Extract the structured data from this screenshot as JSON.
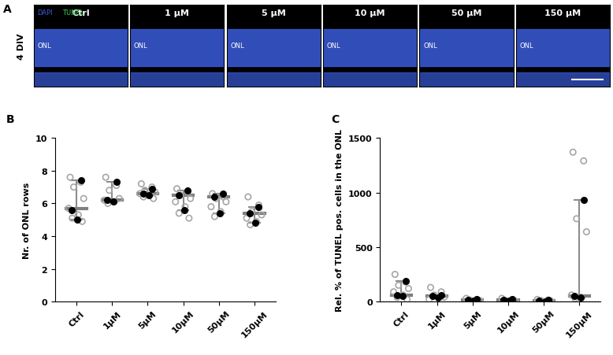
{
  "panel_a": {
    "label": "A",
    "row_label": "4 DIV",
    "region_label": "ONL",
    "stains": [
      {
        "name": "DAPI",
        "color": "#3a5bd9"
      },
      {
        "name": "TUNEL",
        "color": "#39d353"
      }
    ],
    "titles": [
      "Ctrl",
      "1 µM",
      "5 µM",
      "10 µM",
      "50 µM",
      "150 µM"
    ]
  },
  "chart_data": [
    {
      "type": "dot",
      "annotations": [
        "B"
      ],
      "y_label": "Nr. of ONL rows",
      "categories": [
        "Ctrl",
        "1µM",
        "5µM",
        "10µM",
        "50µM",
        "150µM"
      ],
      "points": [
        [
          7.6,
          7.3,
          7.0,
          6.3,
          5.7,
          5.3,
          5.1,
          4.9
        ],
        [
          7.6,
          7.1,
          6.8,
          6.3,
          6.2,
          6.1,
          6.0
        ],
        [
          7.2,
          7.0,
          6.8,
          6.7,
          6.6,
          6.5,
          6.4,
          6.3
        ],
        [
          6.9,
          6.7,
          6.5,
          6.3,
          6.1,
          5.8,
          5.4,
          5.1
        ],
        [
          6.6,
          6.4,
          6.3,
          6.1,
          5.8,
          5.5,
          5.2
        ],
        [
          6.4,
          5.9,
          5.5,
          5.3,
          5.1,
          4.9,
          4.7
        ]
      ],
      "means": [
        [
          7.4,
          5.6,
          5.0
        ],
        [
          7.3,
          6.2,
          6.1
        ],
        [
          6.9,
          6.6,
          6.5
        ],
        [
          6.8,
          6.5,
          5.6
        ],
        [
          6.6,
          6.4,
          5.4
        ],
        [
          5.8,
          5.4,
          4.8
        ]
      ],
      "median": [
        5.7,
        6.2,
        6.6,
        6.5,
        6.4,
        5.4
      ],
      "range": [
        [
          5.0,
          7.4
        ],
        [
          6.1,
          7.3
        ],
        [
          6.5,
          6.9
        ],
        [
          5.6,
          6.8
        ],
        [
          5.4,
          6.6
        ],
        [
          4.8,
          5.8
        ]
      ],
      "ylim": [
        0,
        10
      ],
      "yticks": [
        0,
        2,
        4,
        6,
        8,
        10
      ]
    },
    {
      "type": "dot",
      "annotations": [
        "C"
      ],
      "y_label": "Rel. % of TUNEL pos. cells in the ONL",
      "categories": [
        "Ctrl",
        "1µM",
        "5µM",
        "10µM",
        "50µM",
        "150µM"
      ],
      "points": [
        [
          250,
          180,
          150,
          120,
          90,
          60,
          40,
          20
        ],
        [
          130,
          90,
          60,
          40,
          20
        ],
        [
          30,
          20,
          15,
          10
        ],
        [
          30,
          20,
          10,
          5
        ],
        [
          20,
          15,
          10,
          5
        ],
        [
          1370,
          1290,
          760,
          640,
          60,
          40,
          30
        ]
      ],
      "means": [
        [
          190,
          60,
          50
        ],
        [
          60,
          50,
          40
        ],
        [
          20,
          15,
          10
        ],
        [
          20,
          15,
          10
        ],
        [
          15,
          10,
          5
        ],
        [
          930,
          50,
          40
        ]
      ],
      "median": [
        60,
        50,
        15,
        15,
        10,
        50
      ],
      "range": [
        [
          50,
          190
        ],
        [
          40,
          60
        ],
        [
          10,
          20
        ],
        [
          10,
          20
        ],
        [
          5,
          15
        ],
        [
          40,
          930
        ]
      ],
      "hline": 0,
      "ylim": [
        0,
        1500
      ],
      "yticks": [
        0,
        500,
        1000,
        1500
      ]
    }
  ]
}
